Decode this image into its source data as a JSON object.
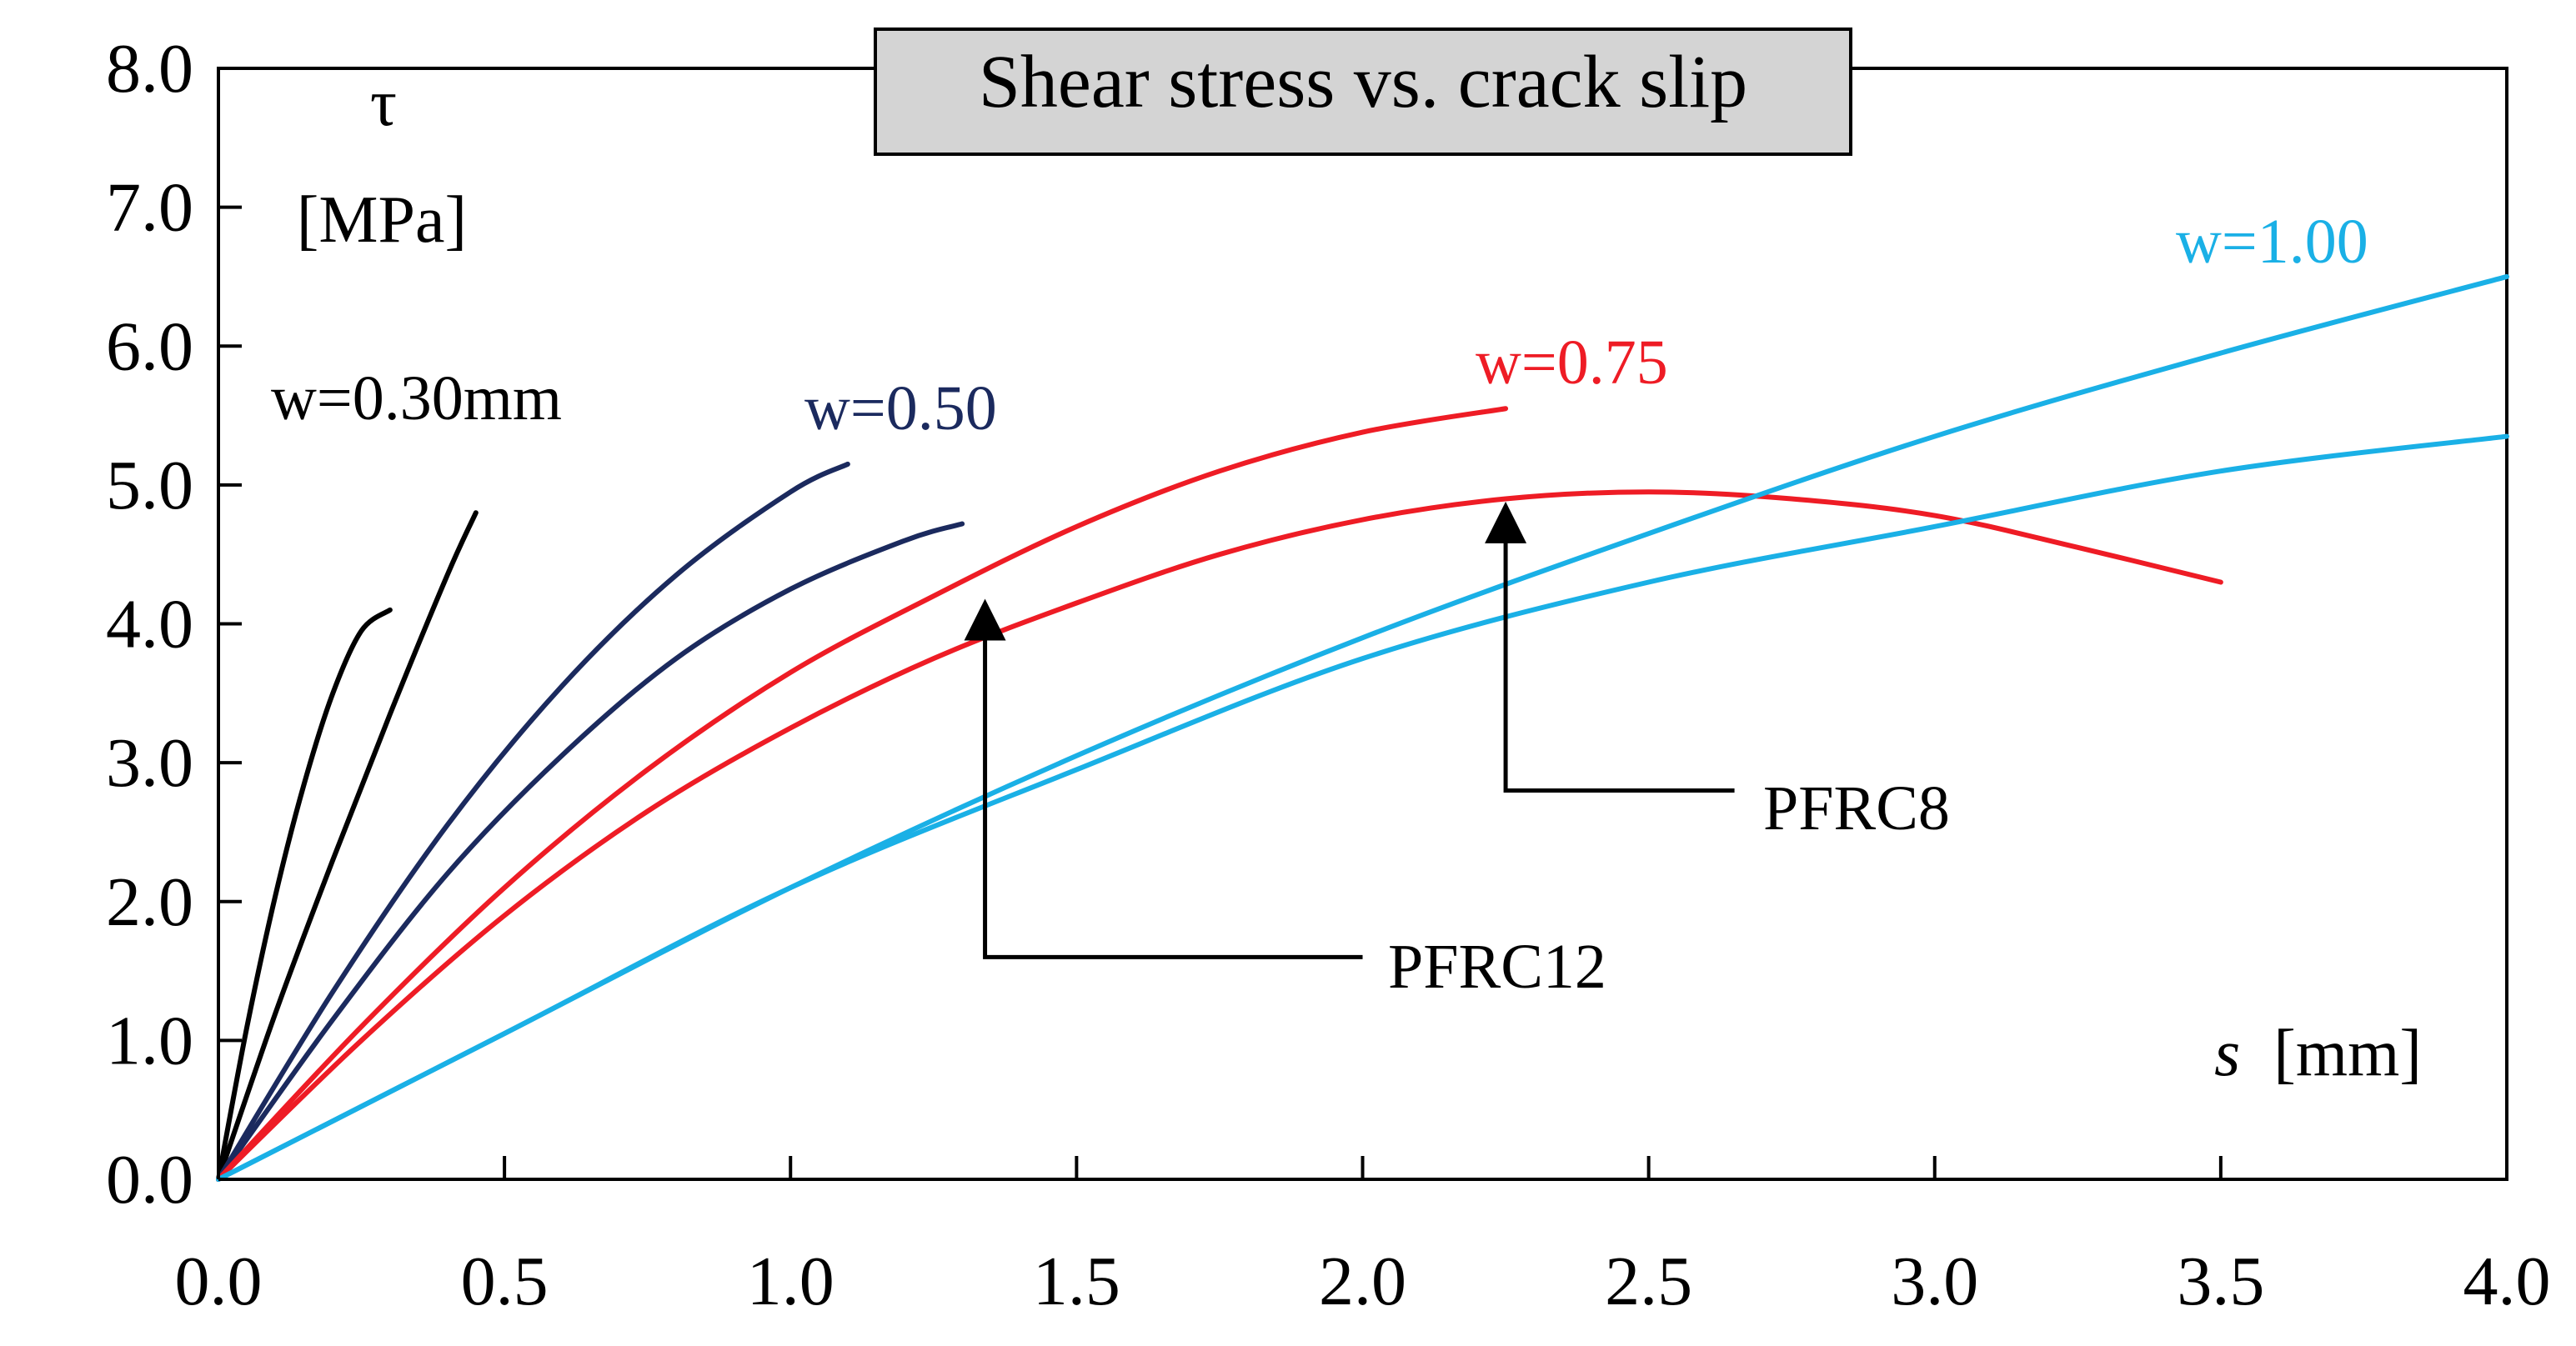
{
  "chart_data": {
    "type": "line",
    "title": "Shear stress vs. crack slip",
    "xlabel_italic": "s",
    "xlabel_unit": "[mm]",
    "ylabel_symbol": "τ",
    "ylabel_unit": "[MPa]",
    "xlim": [
      0,
      4
    ],
    "ylim": [
      0,
      8
    ],
    "x_ticks": [
      "0.0",
      "0.5",
      "1.0",
      "1.5",
      "2.0",
      "2.5",
      "3.0",
      "3.5",
      "4.0"
    ],
    "y_ticks": [
      "0.0",
      "1.0",
      "2.0",
      "3.0",
      "4.0",
      "5.0",
      "6.0",
      "7.0",
      "8.0"
    ],
    "colors": {
      "w030": "#000000",
      "w050": "#1b2a5e",
      "w075": "#ee1c25",
      "w100": "#1ab0e6",
      "axis": "#000000",
      "title_bg": "#d4d4d4"
    },
    "labels": {
      "w030": "w=0.30mm",
      "w050": "w=0.50",
      "w075": "w=0.75",
      "w100": "w=1.00"
    },
    "annotations": [
      {
        "text": "PFRC12",
        "arrow_from": [
          2.0,
          1.6
        ],
        "arrow_corner": [
          1.34,
          1.6
        ],
        "arrow_to": [
          1.34,
          4.15
        ]
      },
      {
        "text": "PFRC8",
        "arrow_from": [
          2.65,
          2.8
        ],
        "arrow_corner": [
          2.25,
          2.8
        ],
        "arrow_to": [
          2.25,
          4.85
        ]
      }
    ],
    "series": [
      {
        "name": "w=0.30mm PFRC12",
        "group": "w030",
        "x": [
          0,
          0.05,
          0.1,
          0.15,
          0.2,
          0.25,
          0.3
        ],
        "y": [
          0,
          1.1,
          2.05,
          2.85,
          3.5,
          3.95,
          4.1
        ]
      },
      {
        "name": "w=0.30mm PFRC8",
        "group": "w030",
        "x": [
          0,
          0.1,
          0.2,
          0.3,
          0.4,
          0.45
        ],
        "y": [
          0,
          1.2,
          2.3,
          3.35,
          4.35,
          4.8
        ]
      },
      {
        "name": "w=0.50 PFRC12",
        "group": "w050",
        "x": [
          0,
          0.2,
          0.4,
          0.6,
          0.8,
          1.0,
          1.1
        ],
        "y": [
          0,
          1.35,
          2.55,
          3.55,
          4.35,
          4.95,
          5.15
        ]
      },
      {
        "name": "w=0.50 PFRC8",
        "group": "w050",
        "x": [
          0,
          0.2,
          0.4,
          0.6,
          0.8,
          1.0,
          1.2,
          1.3
        ],
        "y": [
          0,
          1.15,
          2.2,
          3.05,
          3.75,
          4.25,
          4.6,
          4.72
        ]
      },
      {
        "name": "w=0.75 PFRC12",
        "group": "w075",
        "x": [
          0,
          0.25,
          0.5,
          0.75,
          1.0,
          1.25,
          1.5,
          1.75,
          2.0,
          2.25
        ],
        "y": [
          0,
          1.1,
          2.1,
          2.95,
          3.65,
          4.2,
          4.7,
          5.1,
          5.38,
          5.55
        ]
      },
      {
        "name": "w=0.75 PFRC8",
        "group": "w075",
        "x": [
          0,
          0.25,
          0.5,
          0.75,
          1.0,
          1.25,
          1.5,
          1.75,
          2.0,
          2.25,
          2.5,
          2.75,
          3.0,
          3.25,
          3.5
        ],
        "y": [
          0,
          1.0,
          1.9,
          2.65,
          3.25,
          3.75,
          4.15,
          4.5,
          4.75,
          4.9,
          4.95,
          4.9,
          4.78,
          4.55,
          4.3
        ]
      },
      {
        "name": "w=1.00 PFRC12",
        "group": "w100",
        "x": [
          0,
          0.5,
          1.0,
          1.5,
          2.0,
          2.5,
          3.0,
          3.5,
          4.0
        ],
        "y": [
          0,
          1.05,
          2.1,
          3.05,
          3.9,
          4.65,
          5.35,
          5.95,
          6.5
        ]
      },
      {
        "name": "w=1.00 PFRC8",
        "group": "w100",
        "x": [
          0,
          0.5,
          1.0,
          1.5,
          2.0,
          2.5,
          3.0,
          3.5,
          4.0
        ],
        "y": [
          0,
          1.05,
          2.1,
          2.95,
          3.75,
          4.3,
          4.7,
          5.1,
          5.35
        ]
      }
    ]
  }
}
